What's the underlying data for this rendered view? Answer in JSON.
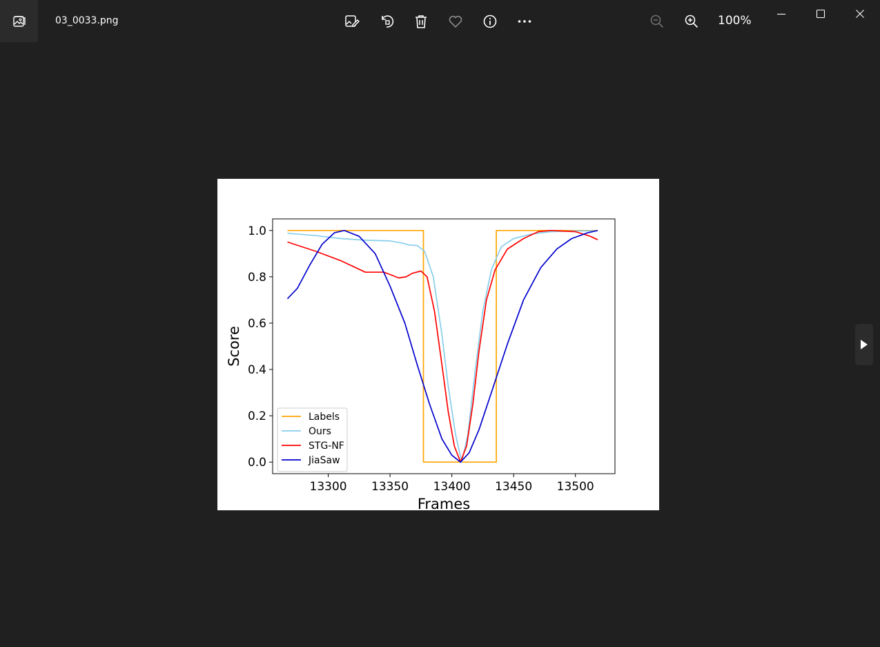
{
  "window": {
    "title": "03_0033.png",
    "zoom_level": "100%"
  },
  "toolbar": {
    "icons": [
      "edit-image-icon",
      "rotate-icon",
      "delete-icon",
      "favorite-icon",
      "info-icon",
      "more-icon"
    ],
    "zoom_out_enabled": false
  },
  "window_controls": [
    "minimize-icon",
    "maximize-icon",
    "close-icon"
  ],
  "chart_data": {
    "type": "line",
    "xlabel": "Frames",
    "ylabel": "Score",
    "xlim": [
      13255,
      13532
    ],
    "ylim": [
      -0.05,
      1.05
    ],
    "xticks": [
      13300,
      13350,
      13400,
      13450,
      13500
    ],
    "xtick_labels": [
      "13300",
      "13350",
      "13400",
      "13450",
      "13500"
    ],
    "yticks": [
      0.0,
      0.2,
      0.4,
      0.6,
      0.8,
      1.0
    ],
    "ytick_labels": [
      "0.0",
      "0.2",
      "0.4",
      "0.6",
      "0.8",
      "1.0"
    ],
    "legend_position": "lower-left",
    "series": [
      {
        "name": "Labels",
        "color": "#ffa500",
        "points": [
          [
            13267,
            1.0
          ],
          [
            13377,
            1.0
          ],
          [
            13377,
            0.0
          ],
          [
            13436,
            0.0
          ],
          [
            13436,
            1.0
          ],
          [
            13518,
            1.0
          ]
        ]
      },
      {
        "name": "Ours",
        "color": "#87ceeb",
        "points": [
          [
            13267,
            0.988
          ],
          [
            13290,
            0.978
          ],
          [
            13310,
            0.965
          ],
          [
            13330,
            0.958
          ],
          [
            13350,
            0.955
          ],
          [
            13360,
            0.945
          ],
          [
            13365,
            0.938
          ],
          [
            13372,
            0.935
          ],
          [
            13378,
            0.91
          ],
          [
            13385,
            0.8
          ],
          [
            13392,
            0.55
          ],
          [
            13397,
            0.33
          ],
          [
            13403,
            0.12
          ],
          [
            13408,
            0.0
          ],
          [
            13413,
            0.12
          ],
          [
            13419,
            0.4
          ],
          [
            13425,
            0.65
          ],
          [
            13432,
            0.83
          ],
          [
            13440,
            0.93
          ],
          [
            13450,
            0.965
          ],
          [
            13465,
            0.985
          ],
          [
            13480,
            0.995
          ],
          [
            13500,
            0.998
          ],
          [
            13518,
            0.998
          ]
        ]
      },
      {
        "name": "STG-NF",
        "color": "#ff0000",
        "points": [
          [
            13267,
            0.95
          ],
          [
            13290,
            0.91
          ],
          [
            13310,
            0.87
          ],
          [
            13330,
            0.82
          ],
          [
            13345,
            0.82
          ],
          [
            13350,
            0.81
          ],
          [
            13357,
            0.795
          ],
          [
            13363,
            0.8
          ],
          [
            13368,
            0.815
          ],
          [
            13375,
            0.825
          ],
          [
            13380,
            0.8
          ],
          [
            13386,
            0.65
          ],
          [
            13392,
            0.42
          ],
          [
            13397,
            0.22
          ],
          [
            13402,
            0.07
          ],
          [
            13407,
            0.0
          ],
          [
            13412,
            0.07
          ],
          [
            13417,
            0.25
          ],
          [
            13422,
            0.48
          ],
          [
            13428,
            0.7
          ],
          [
            13435,
            0.83
          ],
          [
            13445,
            0.92
          ],
          [
            13458,
            0.965
          ],
          [
            13470,
            0.995
          ],
          [
            13480,
            1.0
          ],
          [
            13500,
            0.995
          ],
          [
            13512,
            0.975
          ],
          [
            13518,
            0.96
          ]
        ]
      },
      {
        "name": "JiaSaw",
        "color": "#0000cd",
        "points": [
          [
            13267,
            0.705
          ],
          [
            13275,
            0.75
          ],
          [
            13285,
            0.85
          ],
          [
            13295,
            0.94
          ],
          [
            13305,
            0.99
          ],
          [
            13313,
            1.0
          ],
          [
            13325,
            0.975
          ],
          [
            13338,
            0.9
          ],
          [
            13350,
            0.76
          ],
          [
            13362,
            0.6
          ],
          [
            13372,
            0.42
          ],
          [
            13382,
            0.25
          ],
          [
            13392,
            0.1
          ],
          [
            13400,
            0.03
          ],
          [
            13407,
            0.0
          ],
          [
            13414,
            0.04
          ],
          [
            13422,
            0.14
          ],
          [
            13432,
            0.3
          ],
          [
            13445,
            0.51
          ],
          [
            13458,
            0.7
          ],
          [
            13472,
            0.84
          ],
          [
            13485,
            0.92
          ],
          [
            13497,
            0.965
          ],
          [
            13510,
            0.99
          ],
          [
            13518,
            1.0
          ]
        ]
      }
    ]
  }
}
